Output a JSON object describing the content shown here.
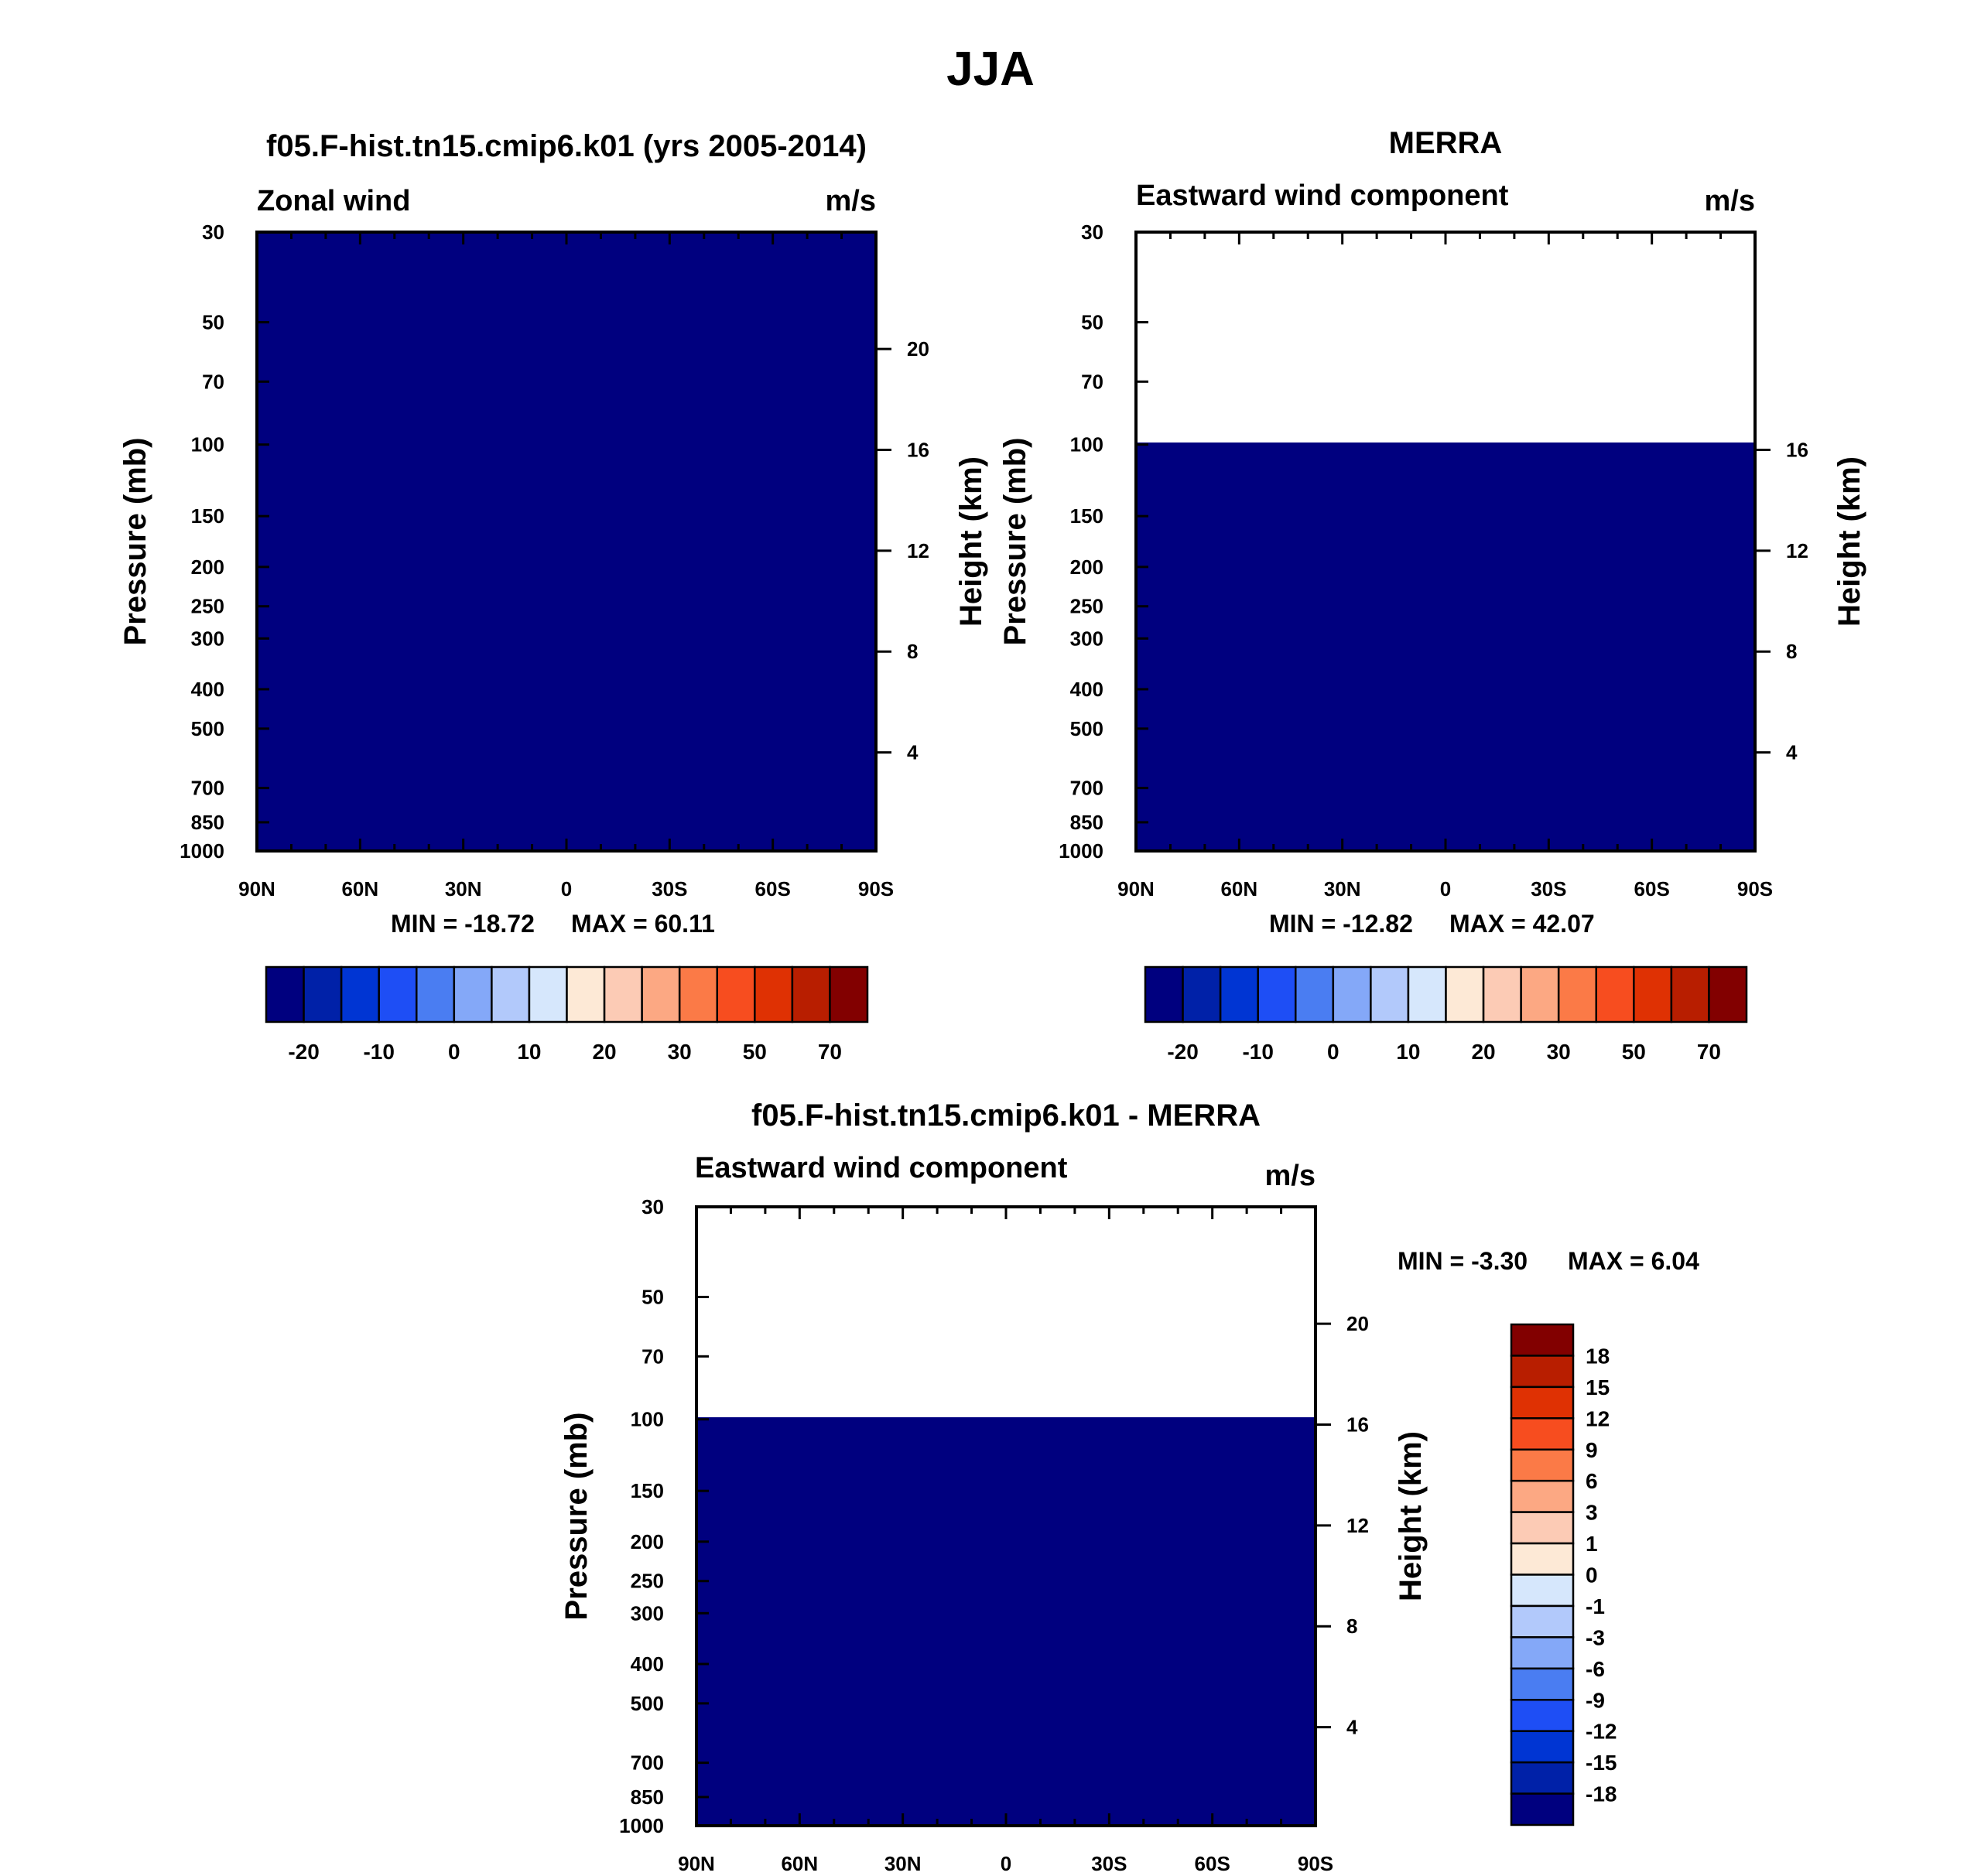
{
  "figure": {
    "title": "JJA"
  },
  "colors": {
    "zonal": [
      "#00007f",
      "#0021a8",
      "#0035d3",
      "#1e4ef5",
      "#4a7df2",
      "#84a8f8",
      "#b2c9fb",
      "#d6e7fc",
      "#fde9d6",
      "#fccbb5",
      "#fca883",
      "#fb7a47",
      "#f74d1f",
      "#df3103",
      "#b81e00",
      "#820000"
    ],
    "diff": [
      "#00007f",
      "#0021a8",
      "#0035d3",
      "#1e4ef5",
      "#4a7df2",
      "#84a8f8",
      "#b2c9fb",
      "#d6e7fc",
      "#fde9d6",
      "#fccbb5",
      "#fca883",
      "#fb7a47",
      "#f74d1f",
      "#df3103",
      "#b81e00",
      "#820000"
    ]
  },
  "chart_data": [
    {
      "id": "model",
      "type": "heatmap",
      "title": "f05.F-hist.tn15.cmip6.k01 (yrs 2005-2014)",
      "left_label": "Zonal wind",
      "right_label": "m/s",
      "ylabel": "Pressure (mb)",
      "y2label": "Height (km)",
      "x_ticks": [
        "90N",
        "60N",
        "30N",
        "0",
        "30S",
        "60S",
        "90S"
      ],
      "y_ticks": [
        "30",
        "50",
        "70",
        "100",
        "150",
        "200",
        "250",
        "300",
        "400",
        "500",
        "700",
        "850",
        "1000"
      ],
      "y2_ticks": [
        "20",
        "16",
        "12",
        "8",
        "4"
      ],
      "min_label": "MIN = -18.72",
      "max_label": "MAX =  60.11",
      "top_pressure": 30,
      "cbar_labels": [
        "-20",
        "-10",
        "0",
        "10",
        "20",
        "30",
        "50",
        "70"
      ],
      "levels": [
        -25,
        -20,
        -15,
        -10,
        -5,
        0,
        5,
        10,
        15,
        20,
        25,
        30,
        40,
        50,
        60,
        70
      ]
    },
    {
      "id": "obs",
      "type": "heatmap",
      "title": "MERRA",
      "left_label": "Eastward wind component",
      "right_label": "m/s",
      "ylabel": "Pressure (mb)",
      "y2label": "Height (km)",
      "x_ticks": [
        "90N",
        "60N",
        "30N",
        "0",
        "30S",
        "60S",
        "90S"
      ],
      "y_ticks": [
        "30",
        "50",
        "70",
        "100",
        "150",
        "200",
        "250",
        "300",
        "400",
        "500",
        "700",
        "850",
        "1000"
      ],
      "y2_ticks": [
        "16",
        "12",
        "8",
        "4"
      ],
      "min_label": "MIN = -12.82",
      "max_label": "MAX =  42.07",
      "top_pressure": 100,
      "cbar_labels": [
        "-20",
        "-10",
        "0",
        "10",
        "20",
        "30",
        "50",
        "70"
      ],
      "levels": [
        -25,
        -20,
        -15,
        -10,
        -5,
        0,
        5,
        10,
        15,
        20,
        25,
        30,
        40,
        50,
        60,
        70
      ]
    },
    {
      "id": "diff",
      "type": "heatmap",
      "title": "f05.F-hist.tn15.cmip6.k01 - MERRA",
      "left_label": "Eastward wind component",
      "right_label": "m/s",
      "ylabel": "Pressure (mb)",
      "y2label": "Height (km)",
      "x_ticks": [
        "90N",
        "60N",
        "30N",
        "0",
        "30S",
        "60S",
        "90S"
      ],
      "y_ticks": [
        "30",
        "50",
        "70",
        "100",
        "150",
        "200",
        "250",
        "300",
        "400",
        "500",
        "700",
        "850",
        "1000"
      ],
      "y2_ticks": [
        "20",
        "16",
        "12",
        "8",
        "4"
      ],
      "min_label": "MIN =  -3.30",
      "max_label": "MAX =   6.04",
      "top_pressure": 100,
      "cbar_labels": [
        "18",
        "15",
        "12",
        "9",
        "6",
        "3",
        "1",
        "0",
        "-1",
        "-3",
        "-6",
        "-9",
        "-12",
        "-15",
        "-18"
      ],
      "levels": [
        -21,
        -18,
        -15,
        -12,
        -9,
        -6,
        -3,
        -1,
        0,
        1,
        3,
        6,
        9,
        12,
        15,
        18
      ]
    }
  ]
}
